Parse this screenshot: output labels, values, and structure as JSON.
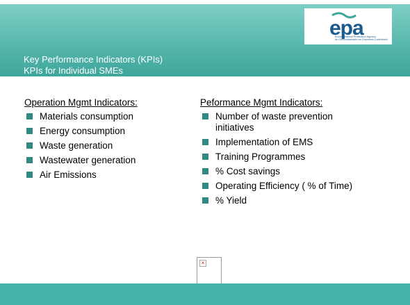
{
  "header": {
    "title": [
      "Key Performance Indicators (KPIs)",
      "KPIs for Individual SMEs"
    ],
    "logo": {
      "word": "epa",
      "name": "Environmental Protection Agency",
      "name_ga": "An Ghníomhaireacht um Chaomhnú Comhshaoil"
    }
  },
  "columns": [
    {
      "heading": "Operation Mgmt Indicators:",
      "items": [
        "Materials consumption",
        "Energy consumption",
        "Waste generation",
        "Wastewater generation",
        "Air Emissions"
      ]
    },
    {
      "heading": "Peformance Mgmt Indicators:",
      "items": [
        "Number of waste prevention initiatives",
        "Implementation of EMS",
        "Training Programmes",
        "% Cost savings",
        "Operating Efficiency ( % of Time)",
        "% Yield"
      ]
    }
  ]
}
